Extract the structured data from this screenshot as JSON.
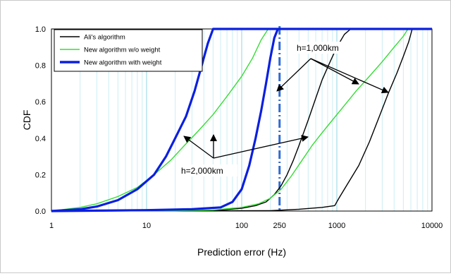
{
  "chart_data": {
    "type": "line",
    "xscale": "log",
    "xlim": [
      1,
      10000
    ],
    "ylim": [
      0,
      1
    ],
    "xlabel": "Prediction error (Hz)",
    "ylabel": "CDF",
    "xticks": [
      1,
      10,
      100,
      250,
      1000,
      10000
    ],
    "xtick_labels": [
      "1",
      "10",
      "100",
      "250",
      "1000",
      "10000"
    ],
    "yticks": [
      0,
      0.2,
      0.4,
      0.6,
      0.8,
      1.0
    ],
    "ytick_labels": [
      "0.0",
      "0.2",
      "0.4",
      "0.6",
      "0.8",
      "1.0"
    ],
    "grid": "vertical minor and major lines",
    "legend_position": "top-left",
    "series": [
      {
        "name": "Ali's algorithm",
        "color": "#000000",
        "curves": [
          {
            "points": [
              [
                1,
                0
              ],
              [
                30,
                0.002
              ],
              [
                60,
                0.006
              ],
              [
                100,
                0.015
              ],
              [
                140,
                0.03
              ],
              [
                180,
                0.05
              ],
              [
                220,
                0.09
              ],
              [
                260,
                0.14
              ],
              [
                300,
                0.2
              ],
              [
                350,
                0.28
              ],
              [
                400,
                0.36
              ],
              [
                500,
                0.5
              ],
              [
                600,
                0.62
              ],
              [
                700,
                0.72
              ],
              [
                850,
                0.82
              ],
              [
                1000,
                0.9
              ],
              [
                1200,
                0.97
              ],
              [
                1400,
                1.0
              ]
            ]
          },
          {
            "points": [
              [
                1,
                0
              ],
              [
                200,
                0.002
              ],
              [
                400,
                0.01
              ],
              [
                700,
                0.02
              ],
              [
                950,
                0.03
              ],
              [
                1050,
                0.07
              ],
              [
                1300,
                0.15
              ],
              [
                1700,
                0.25
              ],
              [
                2200,
                0.38
              ],
              [
                2800,
                0.52
              ],
              [
                3500,
                0.65
              ],
              [
                4300,
                0.76
              ],
              [
                5000,
                0.85
              ],
              [
                5700,
                0.93
              ],
              [
                6200,
                1.0
              ]
            ]
          }
        ]
      },
      {
        "name": "New algorithm w/o weight",
        "color": "#33dd33",
        "curves": [
          {
            "points": [
              [
                1,
                0
              ],
              [
                2,
                0.02
              ],
              [
                3,
                0.04
              ],
              [
                5,
                0.08
              ],
              [
                8,
                0.13
              ],
              [
                12,
                0.2
              ],
              [
                18,
                0.28
              ],
              [
                25,
                0.36
              ],
              [
                35,
                0.44
              ],
              [
                50,
                0.53
              ],
              [
                70,
                0.63
              ],
              [
                100,
                0.74
              ],
              [
                130,
                0.84
              ],
              [
                160,
                0.94
              ],
              [
                190,
                1.0
              ]
            ]
          },
          {
            "points": [
              [
                1,
                0
              ],
              [
                20,
                0.002
              ],
              [
                50,
                0.006
              ],
              [
                100,
                0.02
              ],
              [
                150,
                0.04
              ],
              [
                200,
                0.07
              ],
              [
                260,
                0.12
              ],
              [
                330,
                0.19
              ],
              [
                420,
                0.27
              ],
              [
                550,
                0.36
              ],
              [
                700,
                0.43
              ],
              [
                900,
                0.5
              ],
              [
                1200,
                0.58
              ],
              [
                1600,
                0.66
              ],
              [
                2200,
                0.74
              ],
              [
                3000,
                0.82
              ],
              [
                4000,
                0.9
              ],
              [
                5000,
                0.96
              ],
              [
                5600,
                1.0
              ]
            ]
          }
        ]
      },
      {
        "name": "New algorithm with weight",
        "color": "#0a1fe0",
        "curves": [
          {
            "points": [
              [
                1,
                0
              ],
              [
                2,
                0.01
              ],
              [
                3,
                0.025
              ],
              [
                5,
                0.06
              ],
              [
                8,
                0.12
              ],
              [
                12,
                0.2
              ],
              [
                16,
                0.3
              ],
              [
                20,
                0.4
              ],
              [
                26,
                0.52
              ],
              [
                32,
                0.66
              ],
              [
                38,
                0.8
              ],
              [
                44,
                0.92
              ],
              [
                50,
                1.0
              ],
              [
                10000,
                1.0
              ]
            ]
          },
          {
            "points": [
              [
                1,
                0
              ],
              [
                10,
                0.005
              ],
              [
                30,
                0.01
              ],
              [
                60,
                0.02
              ],
              [
                80,
                0.05
              ],
              [
                100,
                0.12
              ],
              [
                120,
                0.25
              ],
              [
                140,
                0.4
              ],
              [
                160,
                0.55
              ],
              [
                180,
                0.7
              ],
              [
                200,
                0.84
              ],
              [
                220,
                0.95
              ],
              [
                240,
                1.0
              ]
            ]
          }
        ]
      }
    ],
    "reference_line": {
      "x": 250,
      "style": "dash-dot",
      "color": "#2d6bd6"
    },
    "annotations": [
      {
        "text": "h=1,000km"
      },
      {
        "text": "h=2,000km"
      }
    ]
  }
}
